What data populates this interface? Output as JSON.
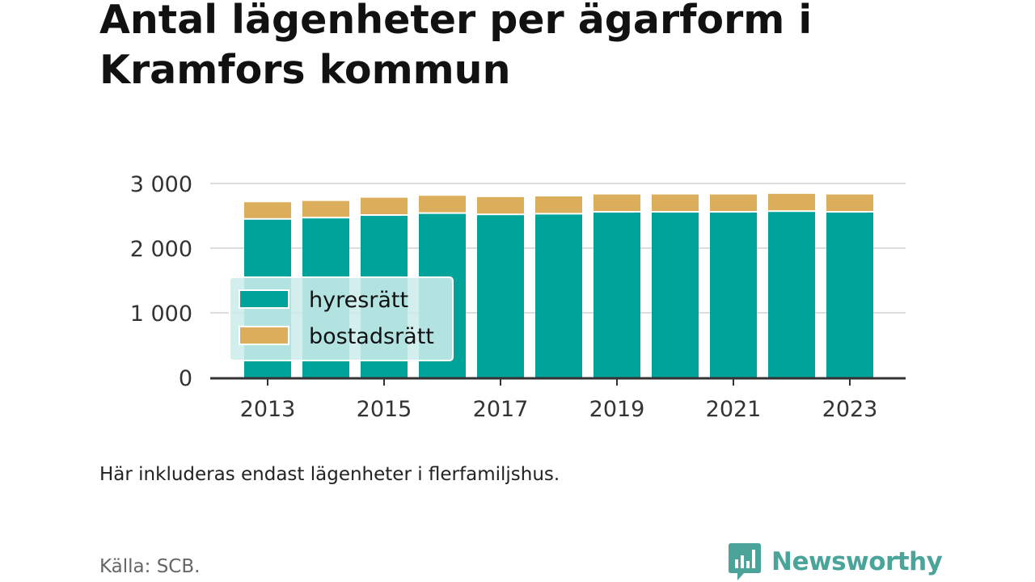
{
  "title": "Antal lägenheter per ägarform i Kramfors kommun",
  "note": "Här inkluderas endast lägenheter i flerfamiljshus.",
  "source": "Källa: SCB.",
  "brand": {
    "name": "Newsworthy",
    "color": "#4aa49a",
    "icon": "bar-chart-speech-bubble-icon"
  },
  "colors": {
    "hyresratt": "#00a39a",
    "bostadsratt": "#dcad5b",
    "axis": "#333333",
    "grid": "#dddddd",
    "legend_bg": "#cceceb"
  },
  "chart_data": {
    "type": "bar",
    "stacked": true,
    "categories": [
      "2013",
      "2014",
      "2015",
      "2016",
      "2017",
      "2018",
      "2019",
      "2020",
      "2021",
      "2022",
      "2023"
    ],
    "x_tick_labels": [
      "2013",
      "2015",
      "2017",
      "2019",
      "2021",
      "2023"
    ],
    "series": [
      {
        "name": "hyresrätt",
        "values": [
          2440,
          2460,
          2500,
          2530,
          2510,
          2520,
          2550,
          2550,
          2550,
          2560,
          2550
        ]
      },
      {
        "name": "bostadsrätt",
        "values": [
          270,
          270,
          280,
          280,
          280,
          280,
          280,
          280,
          280,
          280,
          280
        ]
      }
    ],
    "ylim": [
      0,
      3000
    ],
    "y_ticks": [
      0,
      1000,
      2000,
      3000
    ],
    "y_tick_labels": [
      "0",
      "1 000",
      "2 000",
      "3 000"
    ],
    "grid": true,
    "legend": "left, over bars",
    "xlabel": "",
    "ylabel": ""
  }
}
